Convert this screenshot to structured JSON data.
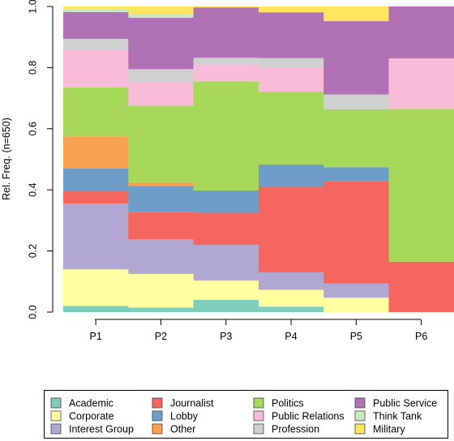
{
  "chart_data": {
    "type": "bar",
    "stacked": true,
    "title": "",
    "xlabel": "",
    "ylabel": "Rel. Freq. (n=650)",
    "ylim": [
      0,
      1
    ],
    "y_ticks": [
      "0.0",
      "0.2",
      "0.4",
      "0.6",
      "0.8",
      "1.0"
    ],
    "grid": false,
    "legend_position": "bottom",
    "categories": [
      "P1",
      "P2",
      "P3",
      "P4",
      "P5",
      "P6"
    ],
    "series": [
      {
        "name": "Academic",
        "color": "#7fcdbb",
        "values": [
          0.02,
          0.015,
          0.04,
          0.018,
          0.0,
          0.0
        ]
      },
      {
        "name": "Corporate",
        "color": "#ffffa0",
        "values": [
          0.12,
          0.11,
          0.063,
          0.055,
          0.047,
          0.0
        ]
      },
      {
        "name": "Interest Group",
        "color": "#b0a8d0",
        "values": [
          0.215,
          0.113,
          0.117,
          0.057,
          0.047,
          0.0
        ]
      },
      {
        "name": "Journalist",
        "color": "#f4665e",
        "values": [
          0.04,
          0.09,
          0.105,
          0.28,
          0.335,
          0.165
        ]
      },
      {
        "name": "Lobby",
        "color": "#6e9ec8",
        "values": [
          0.075,
          0.085,
          0.073,
          0.073,
          0.045,
          0.0
        ]
      },
      {
        "name": "Other",
        "color": "#f8a04f",
        "values": [
          0.105,
          0.012,
          0.0,
          0.0,
          0.0,
          0.0
        ]
      },
      {
        "name": "Politics",
        "color": "#a8d85a",
        "values": [
          0.16,
          0.25,
          0.357,
          0.238,
          0.19,
          0.5
        ]
      },
      {
        "name": "Public Relations",
        "color": "#f8bcd8",
        "values": [
          0.122,
          0.077,
          0.055,
          0.078,
          0.0,
          0.165
        ]
      },
      {
        "name": "Profession",
        "color": "#d0d0d0",
        "values": [
          0.037,
          0.043,
          0.022,
          0.032,
          0.048,
          0.0
        ]
      },
      {
        "name": "Public Service",
        "color": "#b072b4",
        "values": [
          0.088,
          0.168,
          0.165,
          0.15,
          0.24,
          0.17
        ]
      },
      {
        "name": "Think Tank",
        "color": "#c8e8c4",
        "values": [
          0.008,
          0.012,
          0.0,
          0.0,
          0.0,
          0.0
        ]
      },
      {
        "name": "Military",
        "color": "#ffe560",
        "values": [
          0.01,
          0.025,
          0.003,
          0.019,
          0.048,
          0.0
        ]
      }
    ]
  }
}
